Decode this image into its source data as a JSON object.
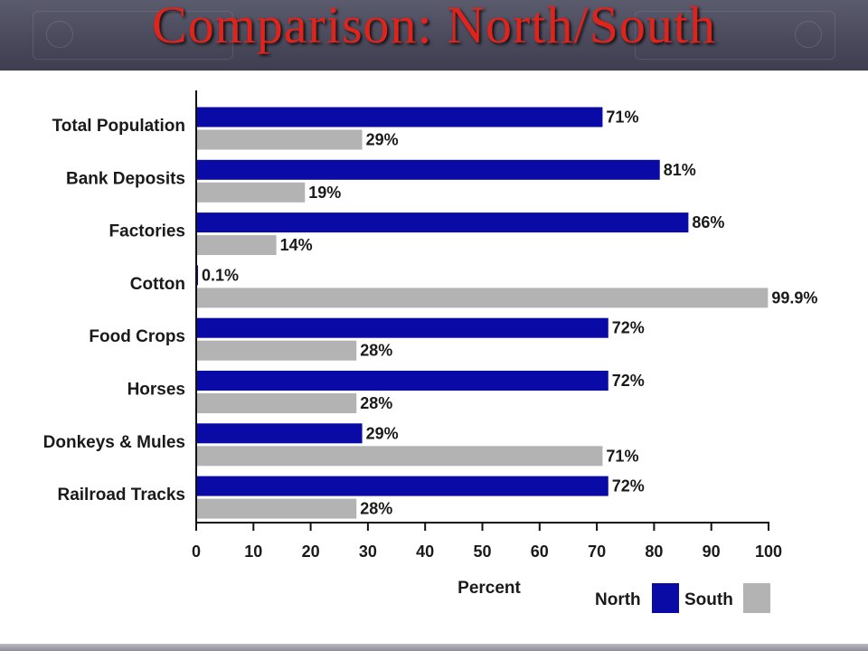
{
  "slide": {
    "title": "Comparison: North/South"
  },
  "chart_data": {
    "type": "bar",
    "orientation": "horizontal",
    "categories": [
      "Total Population",
      "Bank Deposits",
      "Factories",
      "Cotton",
      "Food Crops",
      "Horses",
      "Donkeys & Mules",
      "Railroad Tracks"
    ],
    "series": [
      {
        "name": "North",
        "color": "#0a0aa6",
        "values": [
          71,
          81,
          86,
          0.1,
          72,
          72,
          29,
          72
        ],
        "labels": [
          "71%",
          "81%",
          "86%",
          "0.1%",
          "72%",
          "72%",
          "29%",
          "72%"
        ]
      },
      {
        "name": "South",
        "color": "#b3b3b3",
        "values": [
          29,
          19,
          14,
          99.9,
          28,
          28,
          71,
          28
        ],
        "labels": [
          "29%",
          "19%",
          "14%",
          "99.9%",
          "28%",
          "28%",
          "71%",
          "28%"
        ]
      }
    ],
    "xlabel": "Percent",
    "xlim": [
      0,
      100
    ],
    "xticks": [
      0,
      10,
      20,
      30,
      40,
      50,
      60,
      70,
      80,
      90,
      100
    ],
    "legend_position": "bottom-right",
    "grid": false
  }
}
